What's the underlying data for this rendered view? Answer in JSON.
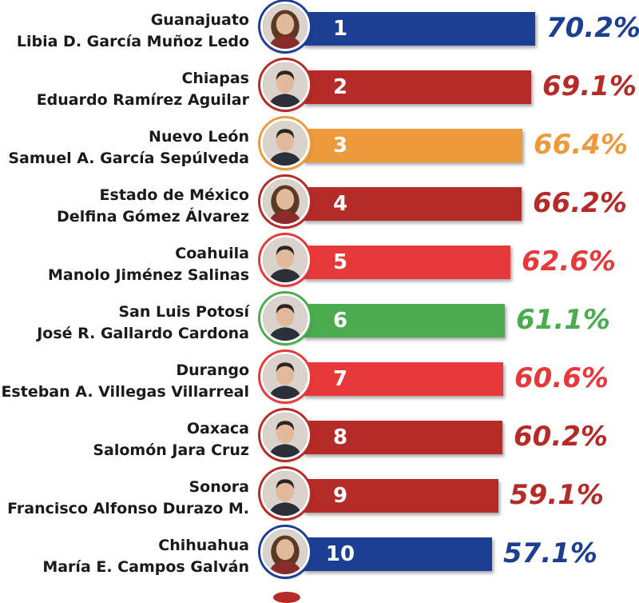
{
  "colors": {
    "pan": "#1c3f94",
    "morena": "#b52b27",
    "mc": "#ec9a3c",
    "pri": "#e8393a",
    "pvem": "#4aac4e"
  },
  "chart_data": {
    "type": "bar",
    "orientation": "horizontal",
    "title": "",
    "xlabel": "",
    "ylabel": "",
    "xlim": [
      0,
      72
    ],
    "categories": [
      "Guanajuato",
      "Chiapas",
      "Nuevo León",
      "Estado de México",
      "Coahuila",
      "San Luis Potosí",
      "Durango",
      "Oaxaca",
      "Sonora",
      "Chihuahua"
    ],
    "rows": [
      {
        "rank": "1",
        "state": "Guanajuato",
        "governor": "Libia D. García Muñoz Ledo",
        "value": 70.2,
        "label": "70.2%",
        "color": "#1c3f94",
        "avatar_icon": "woman-portrait-icon"
      },
      {
        "rank": "2",
        "state": "Chiapas",
        "governor": "Eduardo Ramírez Aguilar",
        "value": 69.1,
        "label": "69.1%",
        "color": "#b52b27",
        "avatar_icon": "man-portrait-icon"
      },
      {
        "rank": "3",
        "state": "Nuevo León",
        "governor": "Samuel A. García Sepúlveda",
        "value": 66.4,
        "label": "66.4%",
        "color": "#ec9a3c",
        "avatar_icon": "man-portrait-icon"
      },
      {
        "rank": "4",
        "state": "Estado de México",
        "governor": "Delfina Gómez Álvarez",
        "value": 66.2,
        "label": "66.2%",
        "color": "#b52b27",
        "avatar_icon": "woman-portrait-icon"
      },
      {
        "rank": "5",
        "state": "Coahuila",
        "governor": "Manolo Jiménez Salinas",
        "value": 62.6,
        "label": "62.6%",
        "color": "#e8393a",
        "avatar_icon": "man-portrait-icon"
      },
      {
        "rank": "6",
        "state": "San Luis Potosí",
        "governor": "José R. Gallardo Cardona",
        "value": 61.1,
        "label": "61.1%",
        "color": "#4aac4e",
        "avatar_icon": "man-portrait-icon"
      },
      {
        "rank": "7",
        "state": "Durango",
        "governor": "Esteban A. Villegas Villarreal",
        "value": 60.6,
        "label": "60.6%",
        "color": "#e8393a",
        "avatar_icon": "man-portrait-icon"
      },
      {
        "rank": "8",
        "state": "Oaxaca",
        "governor": "Salomón Jara Cruz",
        "value": 60.2,
        "label": "60.2%",
        "color": "#b52b27",
        "avatar_icon": "man-portrait-icon"
      },
      {
        "rank": "9",
        "state": "Sonora",
        "governor": "Francisco Alfonso Durazo M.",
        "value": 59.1,
        "label": "59.1%",
        "color": "#b52b27",
        "avatar_icon": "man-portrait-icon"
      },
      {
        "rank": "10",
        "state": "Chihuahua",
        "governor": "María E. Campos Galván",
        "value": 57.1,
        "label": "57.1%",
        "color": "#1c3f94",
        "avatar_icon": "woman-portrait-icon"
      }
    ]
  }
}
